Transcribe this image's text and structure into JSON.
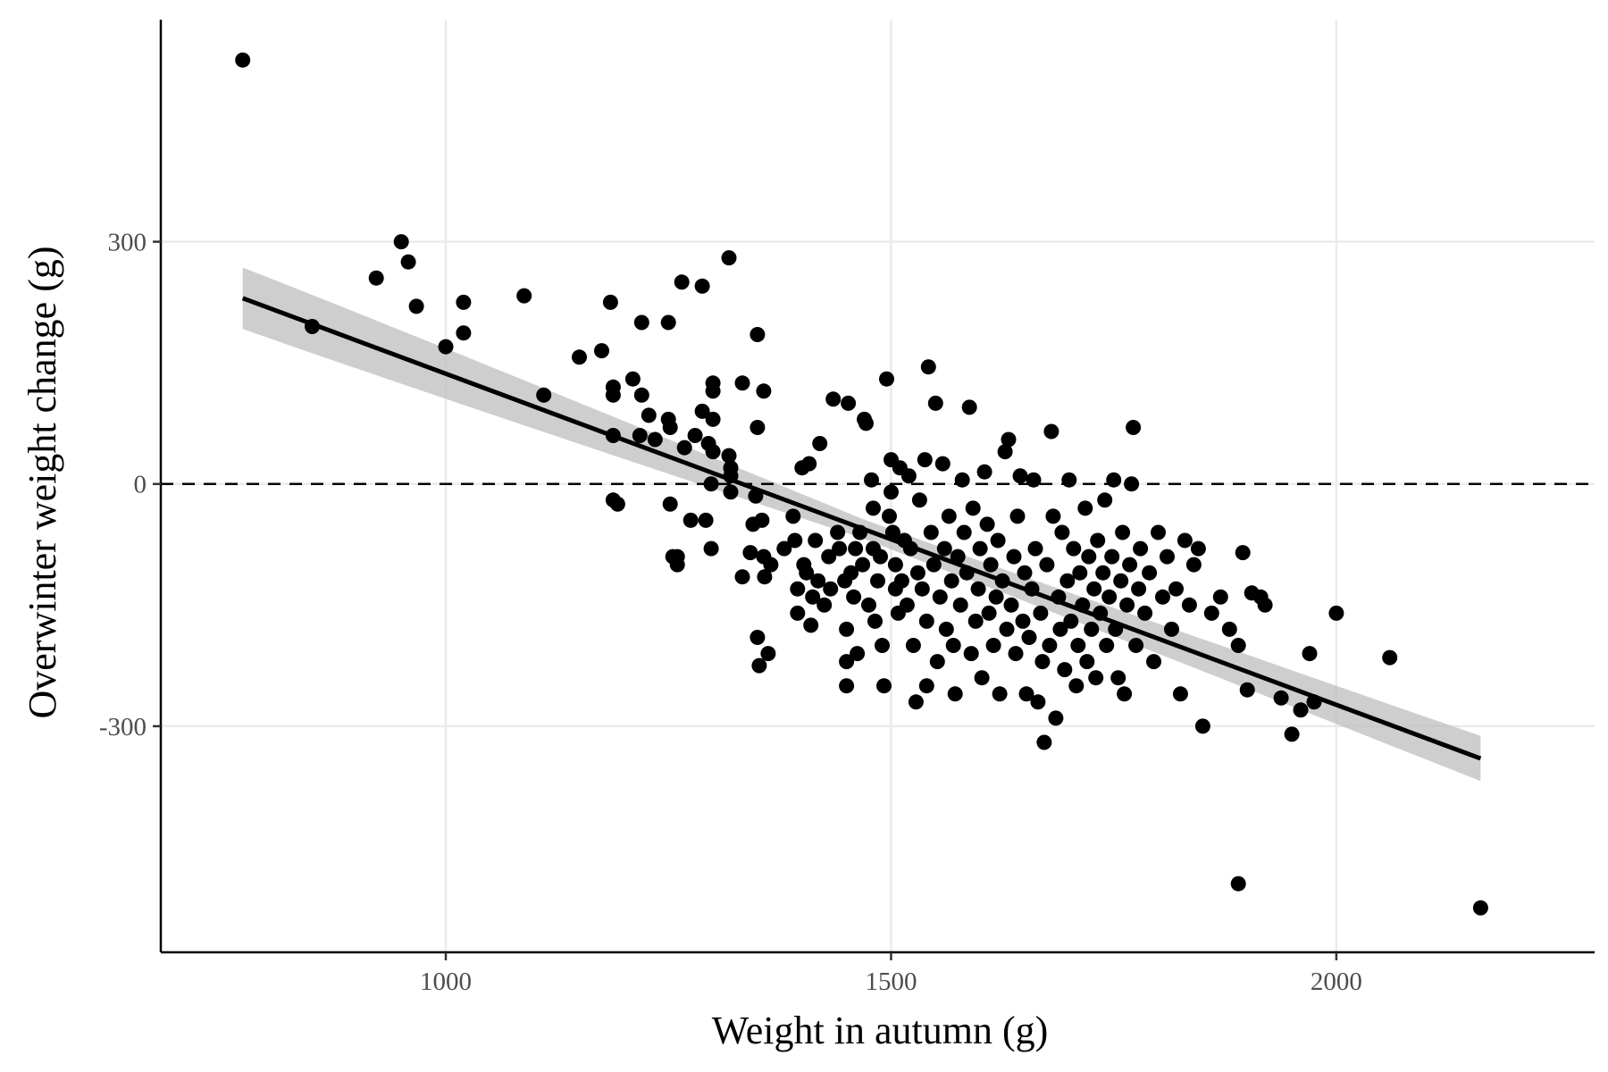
{
  "chart_data": {
    "type": "scatter",
    "title": "",
    "xlabel": "Weight in autumn (g)",
    "ylabel": "Overwinter weight change (g)",
    "xlim": [
      680,
      2290
    ],
    "ylim": [
      -580,
      575
    ],
    "x_ticks": [
      1000,
      1500,
      2000
    ],
    "y_ticks": [
      300,
      0,
      -300
    ],
    "x_tick_labels": [
      "1000",
      "1500",
      "2000"
    ],
    "y_tick_labels": [
      "300",
      "0",
      "-300"
    ],
    "grid": true,
    "legend": "none",
    "reference_line": {
      "y": 0,
      "style": "dashed"
    },
    "fit_line": {
      "type": "linear",
      "x_range": [
        772,
        2162
      ],
      "y_at_start": 230,
      "y_at_end": -340,
      "confidence_band": {
        "half_width_start": 38,
        "half_width_mid": 12,
        "half_width_end": 28
      }
    },
    "colors": {
      "points": "#000000",
      "fit_line": "#000000",
      "band": "#bdbdbd",
      "grid": "#ebebeb",
      "axis": "#000000"
    },
    "points": [
      [
        772,
        525
      ],
      [
        850,
        195
      ],
      [
        922,
        255
      ],
      [
        950,
        300
      ],
      [
        958,
        275
      ],
      [
        967,
        220
      ],
      [
        1000,
        170
      ],
      [
        1020,
        225
      ],
      [
        1020,
        187
      ],
      [
        1088,
        233
      ],
      [
        1110,
        110
      ],
      [
        1150,
        157
      ],
      [
        1175,
        165
      ],
      [
        1185,
        225
      ],
      [
        1188,
        120
      ],
      [
        1188,
        110
      ],
      [
        1188,
        60
      ],
      [
        1188,
        -20
      ],
      [
        1193,
        -25
      ],
      [
        1210,
        130
      ],
      [
        1218,
        60
      ],
      [
        1220,
        200
      ],
      [
        1220,
        110
      ],
      [
        1228,
        85
      ],
      [
        1235,
        55
      ],
      [
        1250,
        200
      ],
      [
        1250,
        80
      ],
      [
        1252,
        70
      ],
      [
        1252,
        -25
      ],
      [
        1255,
        -90
      ],
      [
        1260,
        -100
      ],
      [
        1260,
        -90
      ],
      [
        1265,
        250
      ],
      [
        1268,
        45
      ],
      [
        1275,
        -45
      ],
      [
        1280,
        60
      ],
      [
        1288,
        245
      ],
      [
        1288,
        90
      ],
      [
        1292,
        -45
      ],
      [
        1295,
        50
      ],
      [
        1298,
        0
      ],
      [
        1298,
        -80
      ],
      [
        1300,
        125
      ],
      [
        1300,
        115
      ],
      [
        1300,
        80
      ],
      [
        1300,
        40
      ],
      [
        1318,
        280
      ],
      [
        1318,
        35
      ],
      [
        1320,
        20
      ],
      [
        1320,
        10
      ],
      [
        1320,
        -10
      ],
      [
        1333,
        125
      ],
      [
        1333,
        -115
      ],
      [
        1342,
        -85
      ],
      [
        1345,
        -50
      ],
      [
        1348,
        -15
      ],
      [
        1350,
        185
      ],
      [
        1350,
        70
      ],
      [
        1350,
        -190
      ],
      [
        1352,
        -225
      ],
      [
        1355,
        -45
      ],
      [
        1357,
        115
      ],
      [
        1357,
        -90
      ],
      [
        1358,
        -115
      ],
      [
        1362,
        -210
      ],
      [
        1365,
        -100
      ],
      [
        1380,
        -80
      ],
      [
        1390,
        -40
      ],
      [
        1392,
        -70
      ],
      [
        1395,
        -130
      ],
      [
        1395,
        -160
      ],
      [
        1400,
        20
      ],
      [
        1402,
        -100
      ],
      [
        1405,
        -110
      ],
      [
        1408,
        25
      ],
      [
        1410,
        -175
      ],
      [
        1412,
        -140
      ],
      [
        1415,
        -70
      ],
      [
        1418,
        -120
      ],
      [
        1420,
        50
      ],
      [
        1425,
        -150
      ],
      [
        1430,
        -90
      ],
      [
        1432,
        -130
      ],
      [
        1435,
        105
      ],
      [
        1440,
        -60
      ],
      [
        1442,
        -80
      ],
      [
        1448,
        -120
      ],
      [
        1450,
        -180
      ],
      [
        1450,
        -220
      ],
      [
        1450,
        -250
      ],
      [
        1452,
        100
      ],
      [
        1455,
        -110
      ],
      [
        1458,
        -140
      ],
      [
        1460,
        -80
      ],
      [
        1462,
        -210
      ],
      [
        1465,
        -60
      ],
      [
        1468,
        -100
      ],
      [
        1470,
        80
      ],
      [
        1472,
        75
      ],
      [
        1475,
        -150
      ],
      [
        1478,
        5
      ],
      [
        1480,
        -30
      ],
      [
        1480,
        -80
      ],
      [
        1482,
        -170
      ],
      [
        1485,
        -120
      ],
      [
        1488,
        -90
      ],
      [
        1490,
        -200
      ],
      [
        1492,
        -250
      ],
      [
        1495,
        130
      ],
      [
        1498,
        -40
      ],
      [
        1500,
        30
      ],
      [
        1500,
        -10
      ],
      [
        1502,
        -60
      ],
      [
        1505,
        -100
      ],
      [
        1505,
        -130
      ],
      [
        1508,
        -160
      ],
      [
        1510,
        20
      ],
      [
        1512,
        -120
      ],
      [
        1515,
        -70
      ],
      [
        1518,
        -150
      ],
      [
        1520,
        10
      ],
      [
        1522,
        -80
      ],
      [
        1525,
        -200
      ],
      [
        1528,
        -270
      ],
      [
        1530,
        -110
      ],
      [
        1532,
        -20
      ],
      [
        1535,
        -130
      ],
      [
        1538,
        30
      ],
      [
        1540,
        -170
      ],
      [
        1540,
        -250
      ],
      [
        1542,
        145
      ],
      [
        1545,
        -60
      ],
      [
        1548,
        -100
      ],
      [
        1550,
        100
      ],
      [
        1552,
        -220
      ],
      [
        1555,
        -140
      ],
      [
        1558,
        25
      ],
      [
        1560,
        -80
      ],
      [
        1562,
        -180
      ],
      [
        1565,
        -40
      ],
      [
        1568,
        -120
      ],
      [
        1570,
        -200
      ],
      [
        1572,
        -260
      ],
      [
        1575,
        -90
      ],
      [
        1578,
        -150
      ],
      [
        1580,
        5
      ],
      [
        1582,
        -60
      ],
      [
        1585,
        -110
      ],
      [
        1588,
        95
      ],
      [
        1590,
        -210
      ],
      [
        1592,
        -30
      ],
      [
        1595,
        -170
      ],
      [
        1598,
        -130
      ],
      [
        1600,
        -80
      ],
      [
        1602,
        -240
      ],
      [
        1605,
        15
      ],
      [
        1608,
        -50
      ],
      [
        1610,
        -160
      ],
      [
        1612,
        -100
      ],
      [
        1615,
        -200
      ],
      [
        1618,
        -140
      ],
      [
        1620,
        -70
      ],
      [
        1622,
        -260
      ],
      [
        1625,
        -120
      ],
      [
        1628,
        40
      ],
      [
        1630,
        -180
      ],
      [
        1632,
        55
      ],
      [
        1635,
        -150
      ],
      [
        1638,
        -90
      ],
      [
        1640,
        -210
      ],
      [
        1642,
        -40
      ],
      [
        1645,
        10
      ],
      [
        1648,
        -170
      ],
      [
        1650,
        -110
      ],
      [
        1652,
        -260
      ],
      [
        1655,
        -190
      ],
      [
        1658,
        -130
      ],
      [
        1660,
        5
      ],
      [
        1662,
        -80
      ],
      [
        1665,
        -270
      ],
      [
        1668,
        -160
      ],
      [
        1670,
        -220
      ],
      [
        1672,
        -320
      ],
      [
        1675,
        -100
      ],
      [
        1678,
        -200
      ],
      [
        1680,
        65
      ],
      [
        1682,
        -40
      ],
      [
        1685,
        -290
      ],
      [
        1688,
        -140
      ],
      [
        1690,
        -180
      ],
      [
        1692,
        -60
      ],
      [
        1695,
        -230
      ],
      [
        1698,
        -120
      ],
      [
        1700,
        5
      ],
      [
        1702,
        -170
      ],
      [
        1705,
        -80
      ],
      [
        1708,
        -250
      ],
      [
        1710,
        -200
      ],
      [
        1712,
        -110
      ],
      [
        1715,
        -150
      ],
      [
        1718,
        -30
      ],
      [
        1720,
        -220
      ],
      [
        1722,
        -90
      ],
      [
        1725,
        -180
      ],
      [
        1728,
        -130
      ],
      [
        1730,
        -240
      ],
      [
        1732,
        -70
      ],
      [
        1735,
        -160
      ],
      [
        1738,
        -110
      ],
      [
        1740,
        -20
      ],
      [
        1742,
        -200
      ],
      [
        1745,
        -140
      ],
      [
        1748,
        -90
      ],
      [
        1750,
        5
      ],
      [
        1752,
        -180
      ],
      [
        1755,
        -240
      ],
      [
        1758,
        -120
      ],
      [
        1760,
        -60
      ],
      [
        1762,
        -260
      ],
      [
        1765,
        -150
      ],
      [
        1768,
        -100
      ],
      [
        1770,
        0
      ],
      [
        1772,
        70
      ],
      [
        1775,
        -200
      ],
      [
        1778,
        -130
      ],
      [
        1780,
        -80
      ],
      [
        1785,
        -160
      ],
      [
        1790,
        -110
      ],
      [
        1795,
        -220
      ],
      [
        1800,
        -60
      ],
      [
        1805,
        -140
      ],
      [
        1810,
        -90
      ],
      [
        1815,
        -180
      ],
      [
        1820,
        -130
      ],
      [
        1825,
        -260
      ],
      [
        1830,
        -70
      ],
      [
        1835,
        -150
      ],
      [
        1840,
        -100
      ],
      [
        1845,
        -80
      ],
      [
        1850,
        -300
      ],
      [
        1860,
        -160
      ],
      [
        1870,
        -140
      ],
      [
        1880,
        -180
      ],
      [
        1890,
        -200
      ],
      [
        1895,
        -85
      ],
      [
        1900,
        -255
      ],
      [
        1905,
        -135
      ],
      [
        1915,
        -140
      ],
      [
        1920,
        -150
      ],
      [
        1938,
        -265
      ],
      [
        1950,
        -310
      ],
      [
        1960,
        -280
      ],
      [
        1970,
        -210
      ],
      [
        1975,
        -270
      ],
      [
        2000,
        -160
      ],
      [
        2060,
        -215
      ],
      [
        1890,
        -495
      ],
      [
        2162,
        -525
      ]
    ]
  }
}
